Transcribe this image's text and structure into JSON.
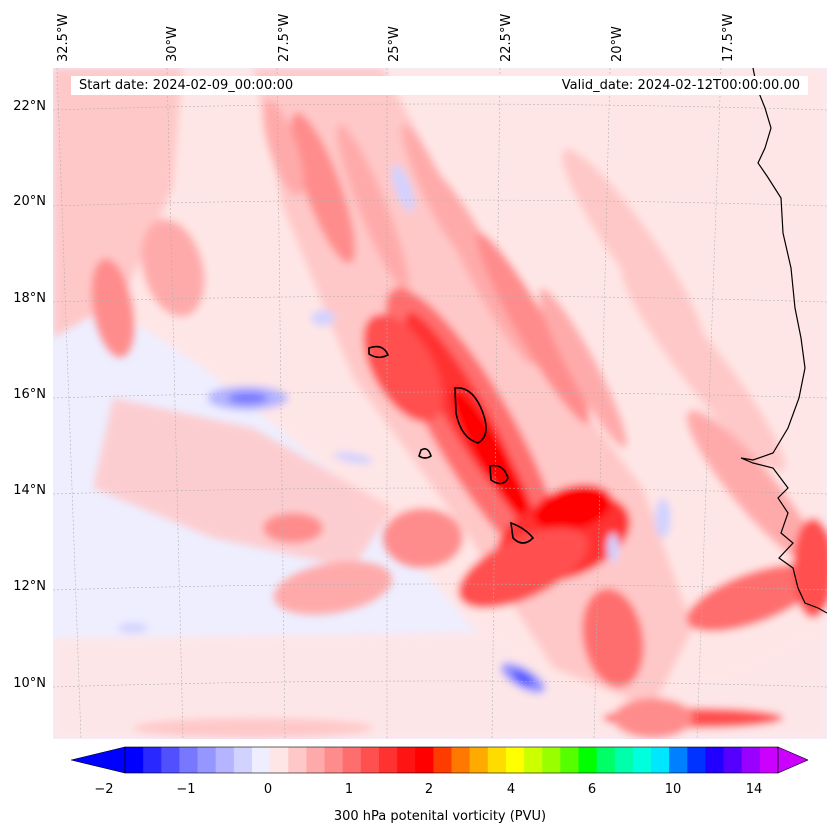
{
  "map": {
    "start_date_text": "Start date: 2024-02-09_00:00:00",
    "valid_date_text": "Valid_date: 2024-02-12T00:00:00.00",
    "lon_labels": [
      "32.5°W",
      "30°W",
      "27.5°W",
      "25°W",
      "22.5°W",
      "20°W",
      "17.5°W"
    ],
    "lat_labels": [
      "22°N",
      "20°N",
      "18°N",
      "16°N",
      "14°N",
      "12°N",
      "10°N"
    ],
    "background_color": "#eeeeff",
    "coastline_color": "#000000"
  },
  "colorbar": {
    "label": "300 hPa potenital vorticity (PVU)",
    "tick_labels": [
      "−2",
      "−1",
      "0",
      "1",
      "2",
      "4",
      "6",
      "10",
      "14"
    ],
    "colors": [
      "#0000ff",
      "#2828ff",
      "#5050ff",
      "#7878ff",
      "#9696ff",
      "#b4b4ff",
      "#d2d2ff",
      "#eeeeff",
      "#ffe6e6",
      "#ffc8c8",
      "#ffaaaa",
      "#ff8c8c",
      "#ff6e6e",
      "#ff5050",
      "#ff3232",
      "#ff1414",
      "#ff0000",
      "#ff3c00",
      "#ff7800",
      "#ffaa00",
      "#ffdc00",
      "#ffff00",
      "#ccff00",
      "#99ff00",
      "#55ff00",
      "#00ff00",
      "#00ff66",
      "#00ffaa",
      "#00ffdd",
      "#00e6ff",
      "#0080ff",
      "#0033ff",
      "#2200ff",
      "#5500ff",
      "#9900ff",
      "#cc00ff"
    ],
    "extend_low_color": "#0000ff",
    "extend_high_color": "#cc00ff"
  }
}
